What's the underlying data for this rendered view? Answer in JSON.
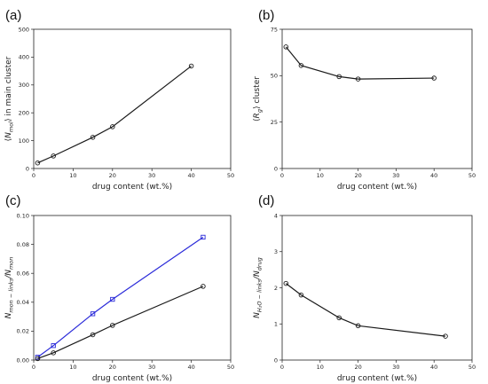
{
  "chart_data": [
    {
      "panel_label": "(a)",
      "type": "line",
      "xlabel": "drug content (wt.%)",
      "ylabel": "⟨N_mol⟩ in main cluster",
      "ylabel_parts": [
        "⟨",
        "N",
        "mol",
        "⟩ in main cluster"
      ],
      "xlim": [
        0,
        50
      ],
      "ylim": [
        0,
        500
      ],
      "xticks": [
        0,
        10,
        20,
        30,
        40,
        50
      ],
      "yticks": [
        0,
        100,
        200,
        300,
        400,
        500
      ],
      "ytick_labels": [
        "0",
        "100",
        "200",
        "300",
        "400",
        "500"
      ],
      "grid": false,
      "series": [
        {
          "x": [
            1,
            5,
            15,
            20,
            40
          ],
          "y": [
            20,
            45,
            112,
            150,
            368
          ],
          "color": "#1a1a1a",
          "marker": "circle"
        }
      ]
    },
    {
      "panel_label": "(b)",
      "type": "line",
      "xlabel": "drug content (wt.%)",
      "ylabel": "⟨R_g⟩ cluster",
      "ylabel_parts": [
        "⟨",
        "R",
        "g",
        "⟩ cluster"
      ],
      "xlim": [
        0,
        50
      ],
      "ylim": [
        0,
        75
      ],
      "xticks": [
        0,
        10,
        20,
        30,
        40,
        50
      ],
      "yticks": [
        0,
        25,
        50,
        75
      ],
      "ytick_labels": [
        "0",
        "25",
        "50",
        "75"
      ],
      "grid": false,
      "series": [
        {
          "x": [
            1,
            5,
            15,
            20,
            40
          ],
          "y": [
            65.5,
            55.5,
            49.5,
            48.2,
            48.7
          ],
          "color": "#1a1a1a",
          "marker": "circle"
        }
      ]
    },
    {
      "panel_label": "(c)",
      "type": "line",
      "xlabel": "drug content (wt.%)",
      "ylabel": "N_mon−links / N_mon",
      "ylabel_parts": [
        "N",
        "mon − links",
        "/N",
        "mon"
      ],
      "xlim": [
        0,
        50
      ],
      "ylim": [
        0,
        0.1
      ],
      "xticks": [
        0,
        10,
        20,
        30,
        40,
        50
      ],
      "yticks": [
        0,
        0.02,
        0.04,
        0.06,
        0.08,
        0.1
      ],
      "ytick_labels": [
        "0.00",
        "0.02",
        "0.04",
        "0.06",
        "0.08",
        "0.10"
      ],
      "grid": false,
      "series": [
        {
          "x": [
            1,
            5,
            15,
            20,
            43
          ],
          "y": [
            0.002,
            0.01,
            0.032,
            0.042,
            0.085
          ],
          "color": "#2b2bd9",
          "marker": "square"
        },
        {
          "x": [
            1,
            5,
            15,
            20,
            43
          ],
          "y": [
            0.001,
            0.005,
            0.0175,
            0.024,
            0.051
          ],
          "color": "#1a1a1a",
          "marker": "circle"
        }
      ]
    },
    {
      "panel_label": "(d)",
      "type": "line",
      "xlabel": "drug content (wt.%)",
      "ylabel": "N_H2O−links / N_drug",
      "ylabel_parts": [
        "N",
        "H₂O − links",
        "/N",
        "drug"
      ],
      "xlim": [
        0,
        50
      ],
      "ylim": [
        0,
        4
      ],
      "xticks": [
        0,
        10,
        20,
        30,
        40,
        50
      ],
      "yticks": [
        0,
        1,
        2,
        3,
        4
      ],
      "ytick_labels": [
        "0",
        "1",
        "2",
        "3",
        "4"
      ],
      "grid": false,
      "series": [
        {
          "x": [
            1,
            5,
            15,
            20,
            43
          ],
          "y": [
            2.12,
            1.8,
            1.17,
            0.95,
            0.66
          ],
          "color": "#1a1a1a",
          "marker": "circle"
        }
      ]
    }
  ]
}
